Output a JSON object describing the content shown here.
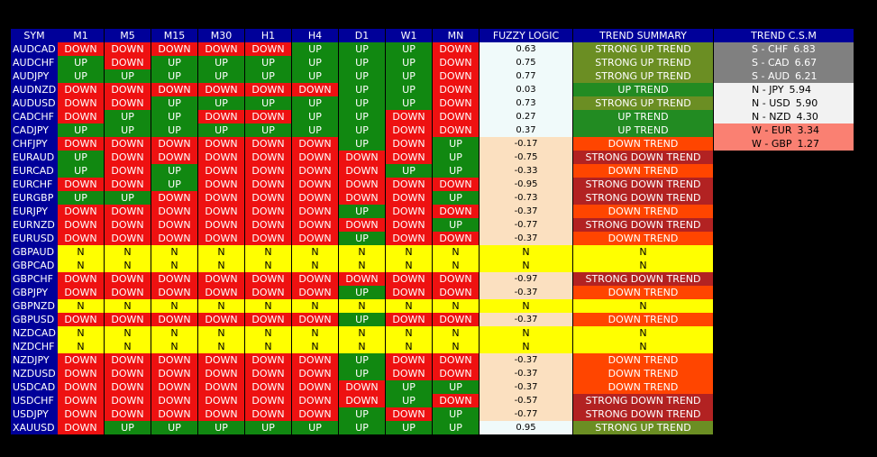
{
  "columns": [
    "SYM",
    "M1",
    "M5",
    "M15",
    "M30",
    "H1",
    "H4",
    "D1",
    "W1",
    "MN",
    "FUZZY LOGIC",
    "TREND SUMMARY",
    "TREND C.S.M"
  ],
  "rows": [
    {
      "sym": "AUDCAD",
      "tf": [
        "DOWN",
        "DOWN",
        "DOWN",
        "DOWN",
        "DOWN",
        "UP",
        "UP",
        "UP",
        "DOWN"
      ],
      "fuzzy": "0.63",
      "summary": "STRONG UP TREND"
    },
    {
      "sym": "AUDCHF",
      "tf": [
        "UP",
        "DOWN",
        "UP",
        "UP",
        "UP",
        "UP",
        "UP",
        "UP",
        "DOWN"
      ],
      "fuzzy": "0.75",
      "summary": "STRONG UP TREND"
    },
    {
      "sym": "AUDJPY",
      "tf": [
        "UP",
        "UP",
        "UP",
        "UP",
        "UP",
        "UP",
        "UP",
        "UP",
        "DOWN"
      ],
      "fuzzy": "0.77",
      "summary": "STRONG UP TREND"
    },
    {
      "sym": "AUDNZD",
      "tf": [
        "DOWN",
        "DOWN",
        "DOWN",
        "DOWN",
        "DOWN",
        "DOWN",
        "UP",
        "UP",
        "DOWN"
      ],
      "fuzzy": "0.03",
      "summary": "UP TREND"
    },
    {
      "sym": "AUDUSD",
      "tf": [
        "DOWN",
        "DOWN",
        "UP",
        "UP",
        "UP",
        "UP",
        "UP",
        "UP",
        "DOWN"
      ],
      "fuzzy": "0.73",
      "summary": "STRONG UP TREND"
    },
    {
      "sym": "CADCHF",
      "tf": [
        "DOWN",
        "UP",
        "UP",
        "DOWN",
        "DOWN",
        "UP",
        "UP",
        "DOWN",
        "DOWN"
      ],
      "fuzzy": "0.27",
      "summary": "UP TREND"
    },
    {
      "sym": "CADJPY",
      "tf": [
        "UP",
        "UP",
        "UP",
        "UP",
        "UP",
        "UP",
        "UP",
        "DOWN",
        "DOWN"
      ],
      "fuzzy": "0.37",
      "summary": "UP TREND"
    },
    {
      "sym": "CHFJPY",
      "tf": [
        "DOWN",
        "DOWN",
        "DOWN",
        "DOWN",
        "DOWN",
        "DOWN",
        "UP",
        "DOWN",
        "UP"
      ],
      "fuzzy": "-0.17",
      "summary": "DOWN TREND"
    },
    {
      "sym": "EURAUD",
      "tf": [
        "UP",
        "DOWN",
        "DOWN",
        "DOWN",
        "DOWN",
        "DOWN",
        "DOWN",
        "DOWN",
        "UP"
      ],
      "fuzzy": "-0.75",
      "summary": "STRONG DOWN TREND"
    },
    {
      "sym": "EURCAD",
      "tf": [
        "UP",
        "DOWN",
        "UP",
        "DOWN",
        "DOWN",
        "DOWN",
        "DOWN",
        "UP",
        "UP"
      ],
      "fuzzy": "-0.33",
      "summary": "DOWN TREND"
    },
    {
      "sym": "EURCHF",
      "tf": [
        "DOWN",
        "DOWN",
        "UP",
        "DOWN",
        "DOWN",
        "DOWN",
        "DOWN",
        "DOWN",
        "DOWN"
      ],
      "fuzzy": "-0.95",
      "summary": "STRONG DOWN TREND"
    },
    {
      "sym": "EURGBP",
      "tf": [
        "UP",
        "UP",
        "DOWN",
        "DOWN",
        "DOWN",
        "DOWN",
        "DOWN",
        "DOWN",
        "UP"
      ],
      "fuzzy": "-0.73",
      "summary": "STRONG DOWN TREND"
    },
    {
      "sym": "EURJPY",
      "tf": [
        "DOWN",
        "DOWN",
        "DOWN",
        "DOWN",
        "DOWN",
        "DOWN",
        "UP",
        "DOWN",
        "DOWN"
      ],
      "fuzzy": "-0.37",
      "summary": "DOWN TREND"
    },
    {
      "sym": "EURNZD",
      "tf": [
        "DOWN",
        "DOWN",
        "DOWN",
        "DOWN",
        "DOWN",
        "DOWN",
        "DOWN",
        "DOWN",
        "UP"
      ],
      "fuzzy": "-0.77",
      "summary": "STRONG DOWN TREND"
    },
    {
      "sym": "EURUSD",
      "tf": [
        "DOWN",
        "DOWN",
        "DOWN",
        "DOWN",
        "DOWN",
        "DOWN",
        "UP",
        "DOWN",
        "DOWN"
      ],
      "fuzzy": "-0.37",
      "summary": "DOWN TREND"
    },
    {
      "sym": "GBPAUD",
      "tf": [
        "N",
        "N",
        "N",
        "N",
        "N",
        "N",
        "N",
        "N",
        "N"
      ],
      "fuzzy": "N",
      "summary": "N"
    },
    {
      "sym": "GBPCAD",
      "tf": [
        "N",
        "N",
        "N",
        "N",
        "N",
        "N",
        "N",
        "N",
        "N"
      ],
      "fuzzy": "N",
      "summary": "N"
    },
    {
      "sym": "GBPCHF",
      "tf": [
        "DOWN",
        "DOWN",
        "DOWN",
        "DOWN",
        "DOWN",
        "DOWN",
        "DOWN",
        "DOWN",
        "DOWN"
      ],
      "fuzzy": "-0.97",
      "summary": "STRONG DOWN TREND"
    },
    {
      "sym": "GBPJPY",
      "tf": [
        "DOWN",
        "DOWN",
        "DOWN",
        "DOWN",
        "DOWN",
        "DOWN",
        "UP",
        "DOWN",
        "DOWN"
      ],
      "fuzzy": "-0.37",
      "summary": "DOWN TREND"
    },
    {
      "sym": "GBPNZD",
      "tf": [
        "N",
        "N",
        "N",
        "N",
        "N",
        "N",
        "N",
        "N",
        "N"
      ],
      "fuzzy": "N",
      "summary": "N"
    },
    {
      "sym": "GBPUSD",
      "tf": [
        "DOWN",
        "DOWN",
        "DOWN",
        "DOWN",
        "DOWN",
        "DOWN",
        "UP",
        "DOWN",
        "DOWN"
      ],
      "fuzzy": "-0.37",
      "summary": "DOWN TREND"
    },
    {
      "sym": "NZDCAD",
      "tf": [
        "N",
        "N",
        "N",
        "N",
        "N",
        "N",
        "N",
        "N",
        "N"
      ],
      "fuzzy": "N",
      "summary": "N"
    },
    {
      "sym": "NZDCHF",
      "tf": [
        "N",
        "N",
        "N",
        "N",
        "N",
        "N",
        "N",
        "N",
        "N"
      ],
      "fuzzy": "N",
      "summary": "N"
    },
    {
      "sym": "NZDJPY",
      "tf": [
        "DOWN",
        "DOWN",
        "DOWN",
        "DOWN",
        "DOWN",
        "DOWN",
        "UP",
        "DOWN",
        "DOWN"
      ],
      "fuzzy": "-0.37",
      "summary": "DOWN TREND"
    },
    {
      "sym": "NZDUSD",
      "tf": [
        "DOWN",
        "DOWN",
        "DOWN",
        "DOWN",
        "DOWN",
        "DOWN",
        "UP",
        "DOWN",
        "DOWN"
      ],
      "fuzzy": "-0.37",
      "summary": "DOWN TREND"
    },
    {
      "sym": "USDCAD",
      "tf": [
        "DOWN",
        "DOWN",
        "DOWN",
        "DOWN",
        "DOWN",
        "DOWN",
        "DOWN",
        "UP",
        "UP"
      ],
      "fuzzy": "-0.37",
      "summary": "DOWN TREND"
    },
    {
      "sym": "USDCHF",
      "tf": [
        "DOWN",
        "DOWN",
        "DOWN",
        "DOWN",
        "DOWN",
        "DOWN",
        "DOWN",
        "UP",
        "DOWN"
      ],
      "fuzzy": "-0.57",
      "summary": "STRONG DOWN TREND"
    },
    {
      "sym": "USDJPY",
      "tf": [
        "DOWN",
        "DOWN",
        "DOWN",
        "DOWN",
        "DOWN",
        "DOWN",
        "UP",
        "DOWN",
        "UP"
      ],
      "fuzzy": "-0.77",
      "summary": "STRONG DOWN TREND"
    },
    {
      "sym": "XAUUSD",
      "tf": [
        "DOWN",
        "UP",
        "UP",
        "UP",
        "UP",
        "UP",
        "UP",
        "UP",
        "UP"
      ],
      "fuzzy": "0.95",
      "summary": "STRONG UP TREND"
    }
  ],
  "csm": [
    {
      "label": "S - CHF",
      "value": "6.83",
      "level": "S"
    },
    {
      "label": "S - CAD",
      "value": "6.67",
      "level": "S"
    },
    {
      "label": "S - AUD",
      "value": "6.21",
      "level": "S"
    },
    {
      "label": "N - JPY",
      "value": "5.94",
      "level": "N"
    },
    {
      "label": "N - USD",
      "value": "5.90",
      "level": "N"
    },
    {
      "label": "N - NZD",
      "value": "4.30",
      "level": "N"
    },
    {
      "label": "W - EUR",
      "value": "3.34",
      "level": "W"
    },
    {
      "label": "W - GBP",
      "value": "1.27",
      "level": "W"
    }
  ],
  "colors": {
    "header_bg": "#000099",
    "up": "#118811",
    "down": "#ee1111",
    "neutral": "#ffff00",
    "strong_up": "#6b8e23",
    "up_trend": "#228b22",
    "strong_down": "#b22222",
    "down_trend": "#ff4500",
    "csm_strong": "#808080",
    "csm_neutral": "#f2f2f2",
    "csm_weak": "#fa8072"
  }
}
